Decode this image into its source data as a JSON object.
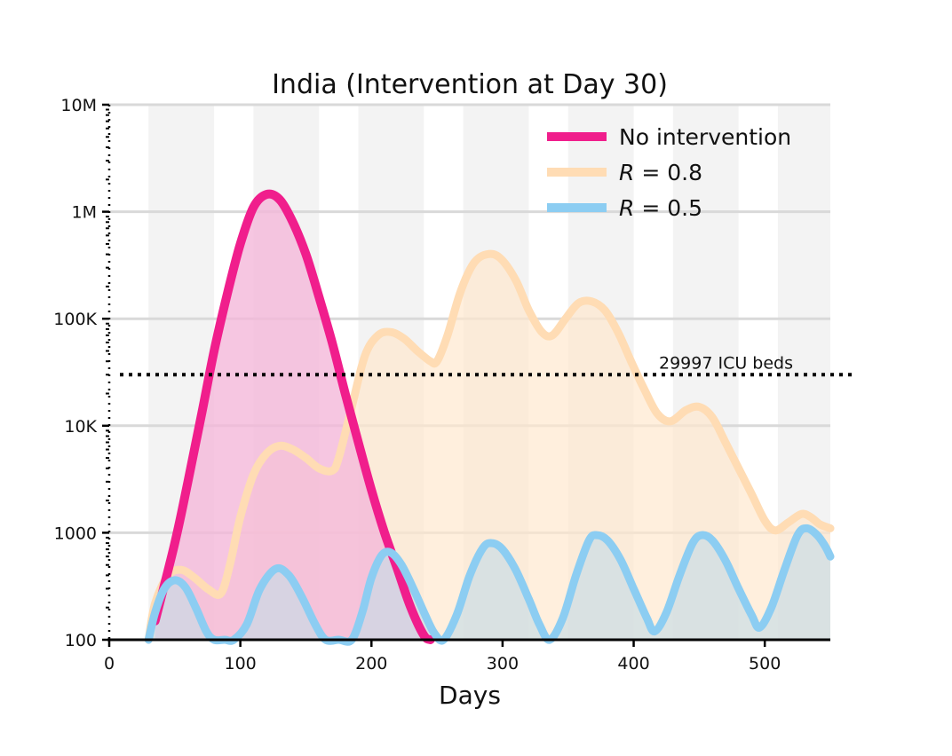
{
  "chart_data": {
    "type": "area",
    "title": "India (Intervention at Day 30)",
    "xlabel": "Days",
    "ylabel": "",
    "y_scale": "log",
    "xlim": [
      0,
      550
    ],
    "ylim": [
      100,
      10000000
    ],
    "x_ticks": [
      0,
      100,
      200,
      300,
      400,
      500
    ],
    "y_ticks": [
      {
        "value": 100,
        "label": "100"
      },
      {
        "value": 1000,
        "label": "1000"
      },
      {
        "value": 10000,
        "label": "10K"
      },
      {
        "value": 100000,
        "label": "100K"
      },
      {
        "value": 1000000,
        "label": "1M"
      },
      {
        "value": 10000000,
        "label": "10M"
      }
    ],
    "grid": "horizontal",
    "background_bands_days": [
      [
        30,
        80
      ],
      [
        110,
        160
      ],
      [
        190,
        240
      ],
      [
        270,
        320
      ],
      [
        350,
        400
      ],
      [
        430,
        480
      ],
      [
        510,
        550
      ]
    ],
    "legend_position": "top-right",
    "threshold": {
      "value": 29997,
      "label": "29997 ICU beds"
    },
    "series": [
      {
        "name": "No intervention",
        "color": "#f01e8c",
        "fill": "#f4b6d8",
        "points": [
          [
            35,
            150
          ],
          [
            50,
            800
          ],
          [
            60,
            3000
          ],
          [
            70,
            12000
          ],
          [
            80,
            50000
          ],
          [
            90,
            170000
          ],
          [
            100,
            500000
          ],
          [
            110,
            1100000
          ],
          [
            120,
            1450000
          ],
          [
            130,
            1300000
          ],
          [
            140,
            800000
          ],
          [
            150,
            400000
          ],
          [
            160,
            160000
          ],
          [
            170,
            60000
          ],
          [
            180,
            20000
          ],
          [
            190,
            7000
          ],
          [
            200,
            2500
          ],
          [
            210,
            1000
          ],
          [
            220,
            450
          ],
          [
            230,
            200
          ],
          [
            240,
            110
          ],
          [
            245,
            100
          ]
        ]
      },
      {
        "name": "R = 0.8",
        "color": "#ffdcb4",
        "fill": "#ffe8cd",
        "points": [
          [
            30,
            100
          ],
          [
            35,
            220
          ],
          [
            45,
            400
          ],
          [
            55,
            450
          ],
          [
            65,
            380
          ],
          [
            75,
            300
          ],
          [
            85,
            270
          ],
          [
            92,
            500
          ],
          [
            100,
            1400
          ],
          [
            110,
            3500
          ],
          [
            120,
            5500
          ],
          [
            130,
            6500
          ],
          [
            140,
            6000
          ],
          [
            150,
            5000
          ],
          [
            160,
            4000
          ],
          [
            170,
            3800
          ],
          [
            175,
            5000
          ],
          [
            185,
            15000
          ],
          [
            195,
            45000
          ],
          [
            205,
            70000
          ],
          [
            215,
            75000
          ],
          [
            225,
            65000
          ],
          [
            235,
            50000
          ],
          [
            245,
            40000
          ],
          [
            250,
            40000
          ],
          [
            258,
            70000
          ],
          [
            268,
            180000
          ],
          [
            278,
            330000
          ],
          [
            288,
            400000
          ],
          [
            298,
            370000
          ],
          [
            310,
            230000
          ],
          [
            320,
            120000
          ],
          [
            330,
            75000
          ],
          [
            338,
            70000
          ],
          [
            348,
            100000
          ],
          [
            358,
            140000
          ],
          [
            368,
            145000
          ],
          [
            378,
            120000
          ],
          [
            388,
            75000
          ],
          [
            398,
            40000
          ],
          [
            408,
            22000
          ],
          [
            418,
            13000
          ],
          [
            428,
            11000
          ],
          [
            440,
            14000
          ],
          [
            450,
            15000
          ],
          [
            460,
            12000
          ],
          [
            470,
            7000
          ],
          [
            480,
            4000
          ],
          [
            490,
            2300
          ],
          [
            500,
            1300
          ],
          [
            508,
            1050
          ],
          [
            518,
            1250
          ],
          [
            528,
            1500
          ],
          [
            535,
            1400
          ],
          [
            542,
            1200
          ],
          [
            550,
            1100
          ]
        ]
      },
      {
        "name": "R = 0.5",
        "color": "#8ccdf2",
        "fill": "#c6dce7",
        "points": [
          [
            30,
            100
          ],
          [
            35,
            180
          ],
          [
            42,
            300
          ],
          [
            50,
            360
          ],
          [
            58,
            310
          ],
          [
            66,
            200
          ],
          [
            74,
            120
          ],
          [
            80,
            95
          ],
          [
            88,
            100
          ],
          [
            95,
            100
          ],
          [
            105,
            140
          ],
          [
            115,
            300
          ],
          [
            127,
            460
          ],
          [
            137,
            400
          ],
          [
            147,
            250
          ],
          [
            157,
            140
          ],
          [
            165,
            100
          ],
          [
            175,
            100
          ],
          [
            185,
            100
          ],
          [
            193,
            180
          ],
          [
            200,
            380
          ],
          [
            208,
            620
          ],
          [
            215,
            650
          ],
          [
            223,
            500
          ],
          [
            232,
            300
          ],
          [
            241,
            170
          ],
          [
            248,
            115
          ],
          [
            255,
            100
          ],
          [
            265,
            170
          ],
          [
            275,
            400
          ],
          [
            285,
            720
          ],
          [
            292,
            800
          ],
          [
            300,
            700
          ],
          [
            310,
            450
          ],
          [
            320,
            240
          ],
          [
            328,
            140
          ],
          [
            336,
            100
          ],
          [
            346,
            160
          ],
          [
            356,
            400
          ],
          [
            366,
            850
          ],
          [
            372,
            950
          ],
          [
            380,
            850
          ],
          [
            390,
            560
          ],
          [
            400,
            300
          ],
          [
            410,
            160
          ],
          [
            416,
            120
          ],
          [
            425,
            180
          ],
          [
            435,
            400
          ],
          [
            445,
            800
          ],
          [
            452,
            950
          ],
          [
            460,
            850
          ],
          [
            470,
            550
          ],
          [
            480,
            300
          ],
          [
            490,
            170
          ],
          [
            496,
            130
          ],
          [
            505,
            200
          ],
          [
            515,
            450
          ],
          [
            525,
            950
          ],
          [
            532,
            1100
          ],
          [
            540,
            950
          ],
          [
            546,
            750
          ],
          [
            550,
            600
          ]
        ]
      }
    ]
  }
}
